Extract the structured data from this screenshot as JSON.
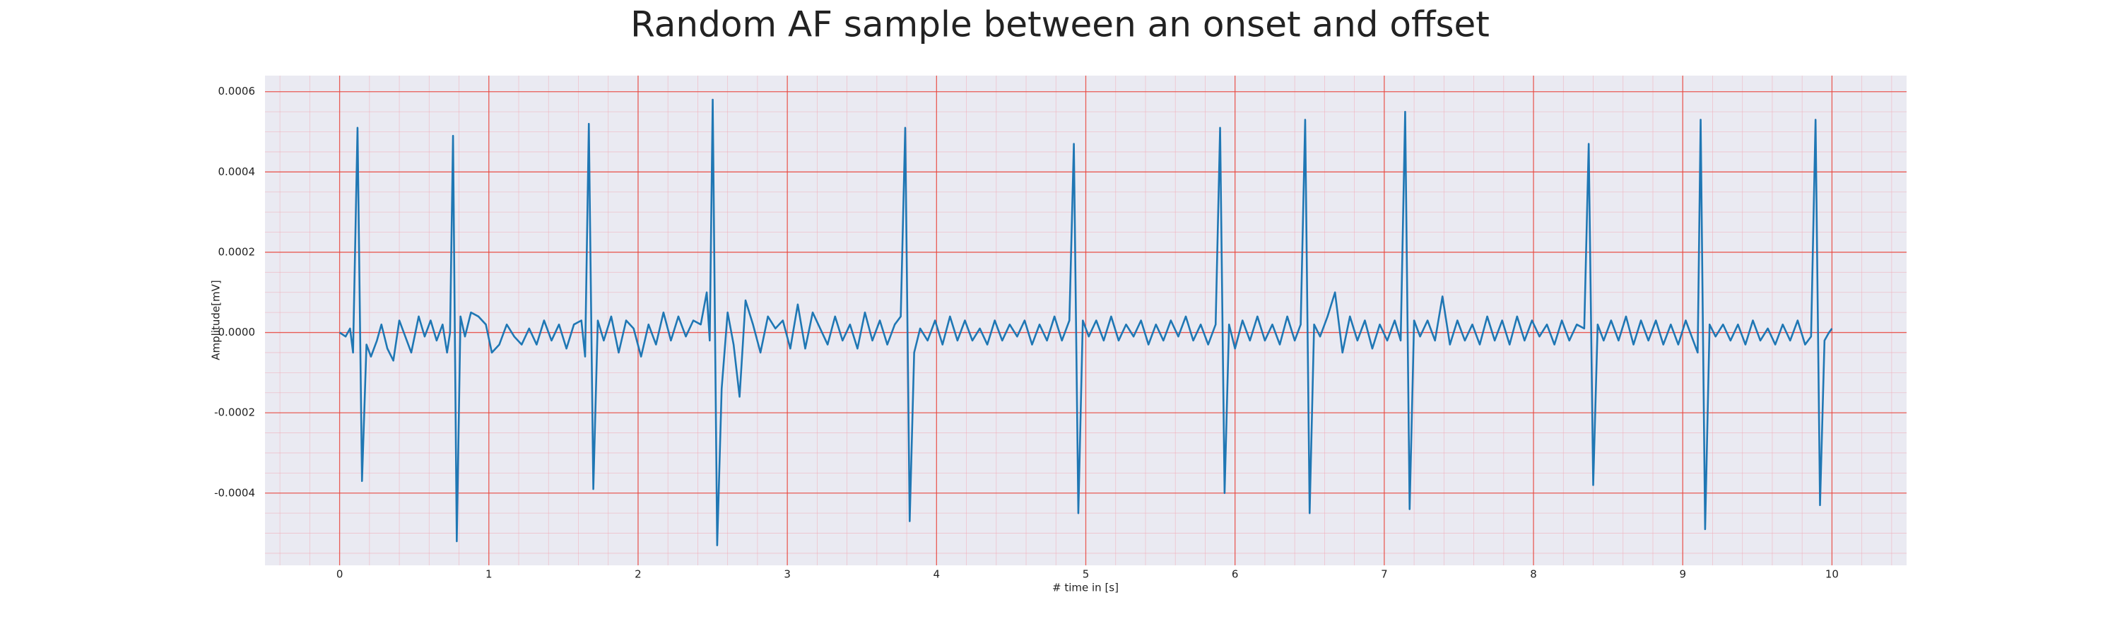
{
  "chart_data": {
    "type": "line",
    "title": "Random AF sample between an onset and offset",
    "x_label": "# time in [s]",
    "y_label": "Amplitude[mV]",
    "x": [
      0,
      0.04,
      0.07,
      0.09,
      0.12,
      0.15,
      0.18,
      0.21,
      0.25,
      0.28,
      0.32,
      0.36,
      0.4,
      0.44,
      0.48,
      0.53,
      0.57,
      0.61,
      0.65,
      0.69,
      0.72,
      0.74,
      0.76,
      0.785,
      0.81,
      0.84,
      0.88,
      0.93,
      0.98,
      1.02,
      1.07,
      1.12,
      1.17,
      1.22,
      1.27,
      1.32,
      1.37,
      1.42,
      1.47,
      1.52,
      1.57,
      1.62,
      1.645,
      1.67,
      1.7,
      1.73,
      1.77,
      1.82,
      1.87,
      1.92,
      1.97,
      2.02,
      2.07,
      2.12,
      2.17,
      2.22,
      2.27,
      2.32,
      2.37,
      2.42,
      2.46,
      2.48,
      2.5,
      2.53,
      2.56,
      2.6,
      2.64,
      2.68,
      2.72,
      2.77,
      2.82,
      2.87,
      2.92,
      2.97,
      3.02,
      3.07,
      3.12,
      3.17,
      3.22,
      3.27,
      3.32,
      3.37,
      3.42,
      3.47,
      3.52,
      3.57,
      3.62,
      3.67,
      3.72,
      3.76,
      3.79,
      3.82,
      3.85,
      3.89,
      3.94,
      3.99,
      4.04,
      4.09,
      4.14,
      4.19,
      4.24,
      4.29,
      4.34,
      4.39,
      4.44,
      4.49,
      4.54,
      4.59,
      4.64,
      4.69,
      4.74,
      4.79,
      4.84,
      4.89,
      4.92,
      4.95,
      4.98,
      5.02,
      5.07,
      5.12,
      5.17,
      5.22,
      5.27,
      5.32,
      5.37,
      5.42,
      5.47,
      5.52,
      5.57,
      5.62,
      5.67,
      5.72,
      5.77,
      5.82,
      5.87,
      5.9,
      5.93,
      5.96,
      6.0,
      6.05,
      6.1,
      6.15,
      6.2,
      6.25,
      6.3,
      6.35,
      6.4,
      6.44,
      6.47,
      6.5,
      6.53,
      6.57,
      6.62,
      6.67,
      6.72,
      6.77,
      6.82,
      6.87,
      6.92,
      6.97,
      7.02,
      7.07,
      7.11,
      7.14,
      7.17,
      7.2,
      7.24,
      7.29,
      7.34,
      7.39,
      7.44,
      7.49,
      7.54,
      7.59,
      7.64,
      7.69,
      7.74,
      7.79,
      7.84,
      7.89,
      7.94,
      7.99,
      8.04,
      8.09,
      8.14,
      8.19,
      8.24,
      8.29,
      8.34,
      8.37,
      8.4,
      8.43,
      8.47,
      8.52,
      8.57,
      8.62,
      8.67,
      8.72,
      8.77,
      8.82,
      8.87,
      8.92,
      8.97,
      9.02,
      9.07,
      9.1,
      9.12,
      9.15,
      9.18,
      9.22,
      9.27,
      9.32,
      9.37,
      9.42,
      9.47,
      9.52,
      9.57,
      9.62,
      9.67,
      9.72,
      9.77,
      9.82,
      9.86,
      9.89,
      9.92,
      9.95,
      9.98,
      10.0
    ],
    "series": [
      {
        "color": "#1f77b4",
        "values": [
          0,
          -1e-05,
          1e-05,
          -5e-05,
          0.00051,
          -0.00037,
          -3e-05,
          -6e-05,
          -2e-05,
          2e-05,
          -4e-05,
          -7e-05,
          3e-05,
          -1e-05,
          -5e-05,
          4e-05,
          -1e-05,
          3e-05,
          -2e-05,
          2e-05,
          -5e-05,
          0,
          0.00049,
          -0.00052,
          4e-05,
          -1e-05,
          5e-05,
          4e-05,
          2e-05,
          -5e-05,
          -3e-05,
          2e-05,
          -1e-05,
          -3e-05,
          1e-05,
          -3e-05,
          3e-05,
          -2e-05,
          2e-05,
          -4e-05,
          2e-05,
          3e-05,
          -6e-05,
          0.00052,
          -0.00039,
          3e-05,
          -2e-05,
          4e-05,
          -5e-05,
          3e-05,
          1e-05,
          -6e-05,
          2e-05,
          -3e-05,
          5e-05,
          -2e-05,
          4e-05,
          -1e-05,
          3e-05,
          2e-05,
          0.0001,
          -2e-05,
          0.00058,
          -0.00053,
          -0.00014,
          5e-05,
          -3e-05,
          -0.00016,
          8e-05,
          2e-05,
          -5e-05,
          4e-05,
          1e-05,
          3e-05,
          -4e-05,
          7e-05,
          -4e-05,
          5e-05,
          1e-05,
          -3e-05,
          4e-05,
          -2e-05,
          2e-05,
          -4e-05,
          5e-05,
          -2e-05,
          3e-05,
          -3e-05,
          2e-05,
          4e-05,
          0.00051,
          -0.00047,
          -5e-05,
          1e-05,
          -2e-05,
          3e-05,
          -3e-05,
          4e-05,
          -2e-05,
          3e-05,
          -2e-05,
          1e-05,
          -3e-05,
          3e-05,
          -2e-05,
          2e-05,
          -1e-05,
          3e-05,
          -3e-05,
          2e-05,
          -2e-05,
          4e-05,
          -2e-05,
          3e-05,
          0.00047,
          -0.00045,
          3e-05,
          -1e-05,
          3e-05,
          -2e-05,
          4e-05,
          -2e-05,
          2e-05,
          -1e-05,
          3e-05,
          -3e-05,
          2e-05,
          -2e-05,
          3e-05,
          -1e-05,
          4e-05,
          -2e-05,
          2e-05,
          -3e-05,
          2e-05,
          0.00051,
          -0.0004,
          2e-05,
          -4e-05,
          3e-05,
          -2e-05,
          4e-05,
          -2e-05,
          2e-05,
          -3e-05,
          4e-05,
          -2e-05,
          2e-05,
          0.00053,
          -0.00045,
          2e-05,
          -1e-05,
          4e-05,
          0.0001,
          -5e-05,
          4e-05,
          -2e-05,
          3e-05,
          -4e-05,
          2e-05,
          -2e-05,
          3e-05,
          -2e-05,
          0.00055,
          -0.00044,
          3e-05,
          -1e-05,
          3e-05,
          -2e-05,
          9e-05,
          -3e-05,
          3e-05,
          -2e-05,
          2e-05,
          -3e-05,
          4e-05,
          -2e-05,
          3e-05,
          -3e-05,
          4e-05,
          -2e-05,
          3e-05,
          -1e-05,
          2e-05,
          -3e-05,
          3e-05,
          -2e-05,
          2e-05,
          1e-05,
          0.00047,
          -0.00038,
          2e-05,
          -2e-05,
          3e-05,
          -2e-05,
          4e-05,
          -3e-05,
          3e-05,
          -2e-05,
          3e-05,
          -3e-05,
          2e-05,
          -3e-05,
          3e-05,
          -2e-05,
          -5e-05,
          0.00053,
          -0.00049,
          2e-05,
          -1e-05,
          2e-05,
          -2e-05,
          2e-05,
          -3e-05,
          3e-05,
          -2e-05,
          1e-05,
          -3e-05,
          2e-05,
          -2e-05,
          3e-05,
          -3e-05,
          -1e-05,
          0.00053,
          -0.00043,
          -2e-05,
          0,
          1e-05
        ]
      }
    ],
    "xlim": [
      -0.5,
      10.5
    ],
    "xticks": [
      0,
      1,
      2,
      3,
      4,
      5,
      6,
      7,
      8,
      9,
      10
    ],
    "ylim": [
      -0.00058,
      0.00064
    ],
    "yticks": [
      -0.0004,
      -0.0002,
      {
        "value": 0,
        "label": "0.0000"
      },
      0.0002,
      0.0004,
      0.0006
    ],
    "grid": true,
    "minor_grid": true
  }
}
